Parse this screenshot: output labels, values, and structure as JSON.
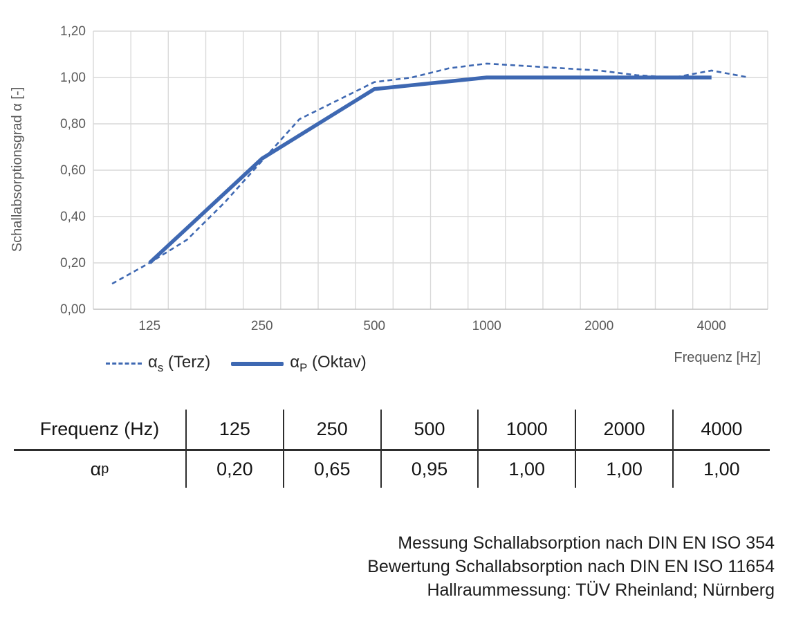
{
  "chart": {
    "y_axis_title": "Schallabsorptionsgrad α [-]",
    "x_axis_title": "Frequenz [Hz]",
    "legend": {
      "terz": {
        "alpha": "α",
        "sub": "s",
        "rest": " (Terz)"
      },
      "oktav": {
        "alpha": "α",
        "sub": "P",
        "rest": " (Oktav)"
      }
    }
  },
  "chart_data": {
    "type": "line",
    "title": "",
    "xlabel": "Frequenz [Hz]",
    "ylabel": "Schallabsorptionsgrad α [-]",
    "x_categories": [
      100,
      125,
      160,
      200,
      250,
      315,
      400,
      500,
      630,
      800,
      1000,
      1250,
      1600,
      2000,
      2500,
      3150,
      4000,
      5000
    ],
    "x_axis_scale": "log-category (third-octave slots)",
    "x_tick_labels": [
      "125",
      "250",
      "500",
      "1000",
      "2000",
      "4000"
    ],
    "x_label_indices": [
      1,
      4,
      7,
      10,
      13,
      16
    ],
    "y_ticks": [
      "0,00",
      "0,20",
      "0,40",
      "0,60",
      "0,80",
      "1,00",
      "1,20"
    ],
    "ylim": [
      0,
      1.2
    ],
    "grid": true,
    "legend_position": "bottom-left",
    "series": [
      {
        "name": "αs (Terz)",
        "style": "dashed",
        "values": [
          0.11,
          0.2,
          0.3,
          0.46,
          0.64,
          0.82,
          0.9,
          0.98,
          1.0,
          1.04,
          1.06,
          1.05,
          1.04,
          1.03,
          1.01,
          1.0,
          1.03,
          1.0
        ]
      },
      {
        "name": "αP (Oktav)",
        "style": "solid",
        "x": [
          125,
          250,
          500,
          1000,
          2000,
          4000
        ],
        "values": [
          0.2,
          0.65,
          0.95,
          1.0,
          1.0,
          1.0
        ]
      }
    ],
    "colors": {
      "line": "#3e68b2",
      "grid": "#d9d9d9",
      "axis": "#bfbfbf",
      "axis_text": "#595959"
    }
  },
  "table": {
    "col0_header": "Frequenz (Hz)",
    "freqs": [
      "125",
      "250",
      "500",
      "1000",
      "2000",
      "4000"
    ],
    "row_label_alpha": "α",
    "row_label_sub": "p",
    "values": [
      "0,20",
      "0,65",
      "0,95",
      "1,00",
      "1,00",
      "1,00"
    ]
  },
  "footer": {
    "lines": [
      "Messung Schallabsorption nach DIN EN ISO 354",
      "Bewertung Schallabsorption nach DIN EN ISO 11654",
      "Hallraummessung: TÜV Rheinland; Nürnberg"
    ]
  }
}
